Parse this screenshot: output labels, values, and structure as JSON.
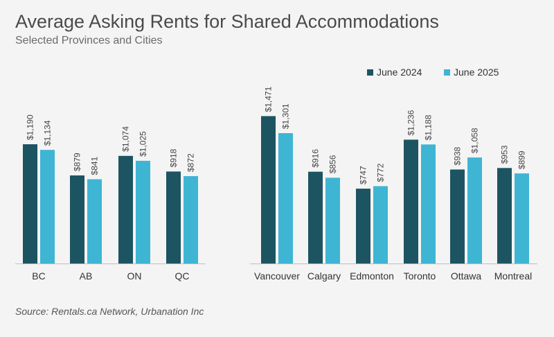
{
  "chart_data": {
    "type": "bar",
    "title": "Average Asking Rents for Shared Accommodations",
    "subtitle": "Selected Provinces and Cities",
    "source": "Source: Rentals.ca Network, Urbanation Inc",
    "categories": [
      "BC",
      "AB",
      "ON",
      "QC",
      "Vancouver",
      "Calgary",
      "Edmonton",
      "Toronto",
      "Ottawa",
      "Montreal"
    ],
    "series": [
      {
        "name": "June 2024",
        "color": "#1d5462",
        "values": [
          1190,
          879,
          1074,
          918,
          1471,
          916,
          747,
          1236,
          938,
          953
        ],
        "labels": [
          "$1,190",
          "$879",
          "$1,074",
          "$918",
          "$1,471",
          "$916",
          "$747",
          "$1,236",
          "$938",
          "$953"
        ]
      },
      {
        "name": "June 2025",
        "color": "#3fb5d4",
        "values": [
          1134,
          841,
          1025,
          872,
          1301,
          856,
          772,
          1188,
          1058,
          899
        ],
        "labels": [
          "$1,134",
          "$841",
          "$1,025",
          "$872",
          "$1,301",
          "$856",
          "$772",
          "$1,188",
          "$1,058",
          "$899"
        ]
      }
    ],
    "ylim": [
      0,
      1700
    ],
    "grid": false,
    "legend_position": "top-right",
    "value_labels_rotated": true
  }
}
